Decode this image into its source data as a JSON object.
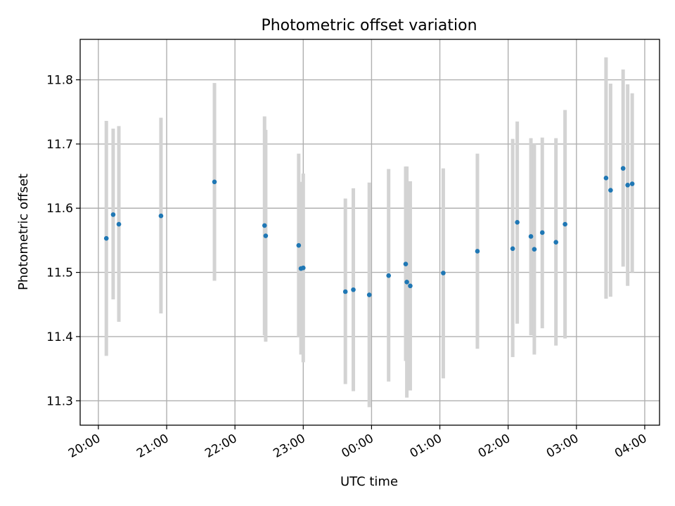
{
  "chart_data": {
    "type": "scatter",
    "title": "Photometric offset variation",
    "xlabel": "UTC time",
    "ylabel": "Photometric offset",
    "x_ticks": [
      "20:00",
      "21:00",
      "22:00",
      "23:00",
      "00:00",
      "01:00",
      "02:00",
      "03:00",
      "04:00"
    ],
    "y_ticks": [
      "11.3",
      "11.4",
      "11.5",
      "11.6",
      "11.7",
      "11.8"
    ],
    "ylim": [
      11.262,
      11.863
    ],
    "xlim": [
      "19:44",
      "04:13"
    ],
    "grid": true,
    "colors": {
      "point": "#1f77b4",
      "errorbar": "#d3d3d3",
      "grid": "#b0b0b0"
    },
    "points": [
      {
        "x": "20:07",
        "y": 11.553,
        "yerr_low": 11.37,
        "yerr_high": 11.736
      },
      {
        "x": "20:13",
        "y": 11.59,
        "yerr_low": 11.458,
        "yerr_high": 11.724
      },
      {
        "x": "20:18",
        "y": 11.575,
        "yerr_low": 11.423,
        "yerr_high": 11.728
      },
      {
        "x": "20:55",
        "y": 11.588,
        "yerr_low": 11.436,
        "yerr_high": 11.741
      },
      {
        "x": "21:42",
        "y": 11.641,
        "yerr_low": 11.487,
        "yerr_high": 11.795
      },
      {
        "x": "22:26",
        "y": 11.573,
        "yerr_low": 11.402,
        "yerr_high": 11.743
      },
      {
        "x": "22:27",
        "y": 11.557,
        "yerr_low": 11.392,
        "yerr_high": 11.722
      },
      {
        "x": "22:56",
        "y": 11.542,
        "yerr_low": 11.4,
        "yerr_high": 11.685
      },
      {
        "x": "22:58",
        "y": 11.506,
        "yerr_low": 11.372,
        "yerr_high": 11.641
      },
      {
        "x": "23:00",
        "y": 11.507,
        "yerr_low": 11.36,
        "yerr_high": 11.654
      },
      {
        "x": "23:37",
        "y": 11.47,
        "yerr_low": 11.326,
        "yerr_high": 11.615
      },
      {
        "x": "23:44",
        "y": 11.473,
        "yerr_low": 11.315,
        "yerr_high": 11.631
      },
      {
        "x": "23:58",
        "y": 11.465,
        "yerr_low": 11.29,
        "yerr_high": 11.64
      },
      {
        "x": "00:15",
        "y": 11.495,
        "yerr_low": 11.33,
        "yerr_high": 11.661
      },
      {
        "x": "00:30",
        "y": 11.513,
        "yerr_low": 11.362,
        "yerr_high": 11.665
      },
      {
        "x": "00:31",
        "y": 11.485,
        "yerr_low": 11.305,
        "yerr_high": 11.665
      },
      {
        "x": "00:34",
        "y": 11.479,
        "yerr_low": 11.316,
        "yerr_high": 11.642
      },
      {
        "x": "01:03",
        "y": 11.499,
        "yerr_low": 11.335,
        "yerr_high": 11.662
      },
      {
        "x": "01:33",
        "y": 11.533,
        "yerr_low": 11.381,
        "yerr_high": 11.685
      },
      {
        "x": "02:04",
        "y": 11.537,
        "yerr_low": 11.368,
        "yerr_high": 11.708
      },
      {
        "x": "02:08",
        "y": 11.578,
        "yerr_low": 11.42,
        "yerr_high": 11.735
      },
      {
        "x": "02:20",
        "y": 11.556,
        "yerr_low": 11.402,
        "yerr_high": 11.709
      },
      {
        "x": "02:23",
        "y": 11.536,
        "yerr_low": 11.372,
        "yerr_high": 11.7
      },
      {
        "x": "02:30",
        "y": 11.562,
        "yerr_low": 11.413,
        "yerr_high": 11.71
      },
      {
        "x": "02:42",
        "y": 11.547,
        "yerr_low": 11.386,
        "yerr_high": 11.709
      },
      {
        "x": "02:50",
        "y": 11.575,
        "yerr_low": 11.397,
        "yerr_high": 11.753
      },
      {
        "x": "03:26",
        "y": 11.647,
        "yerr_low": 11.459,
        "yerr_high": 11.835
      },
      {
        "x": "03:30",
        "y": 11.628,
        "yerr_low": 11.462,
        "yerr_high": 11.794
      },
      {
        "x": "03:41",
        "y": 11.662,
        "yerr_low": 11.509,
        "yerr_high": 11.816
      },
      {
        "x": "03:45",
        "y": 11.636,
        "yerr_low": 11.479,
        "yerr_high": 11.793
      },
      {
        "x": "03:49",
        "y": 11.638,
        "yerr_low": 11.5,
        "yerr_high": 11.779
      }
    ]
  }
}
